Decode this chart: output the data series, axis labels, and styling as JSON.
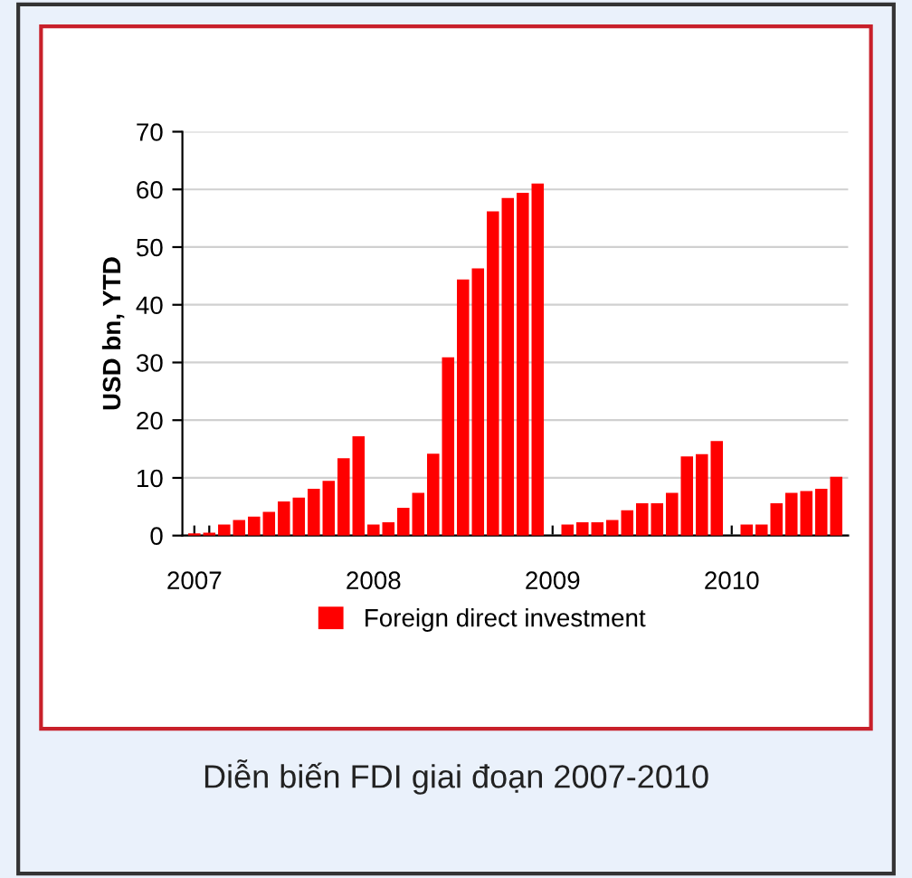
{
  "chart_data": {
    "type": "bar",
    "annotations": [
      "Diễn biến FDI giai đoạn 2007-2010"
    ],
    "ylabel": "USD bn, YTD",
    "categories": [
      "2007",
      null,
      null,
      null,
      null,
      null,
      null,
      null,
      null,
      null,
      null,
      null,
      "2008",
      null,
      null,
      null,
      null,
      null,
      null,
      null,
      null,
      null,
      null,
      null,
      "2009",
      null,
      null,
      null,
      null,
      null,
      null,
      null,
      null,
      null,
      null,
      null,
      "2010",
      null,
      null,
      null,
      null,
      null,
      null,
      null
    ],
    "series": [
      {
        "name": "Foreign direct investment",
        "color": "#ff0000",
        "values": [
          0.4,
          0.5,
          1.9,
          2.7,
          3.3,
          4.1,
          5.9,
          6.6,
          8.1,
          9.5,
          13.4,
          17.2,
          1.9,
          2.3,
          4.8,
          7.4,
          14.2,
          30.9,
          44.4,
          46.3,
          56.2,
          58.5,
          59.4,
          61.0,
          null,
          1.9,
          2.3,
          2.3,
          2.7,
          4.4,
          5.6,
          5.6,
          7.4,
          13.7,
          14.1,
          16.4,
          null,
          1.9,
          1.9,
          5.6,
          7.4,
          7.7,
          8.1,
          10.2
        ]
      }
    ],
    "ylim": [
      0,
      70
    ],
    "yticks": [
      0,
      10,
      20,
      30,
      40,
      50,
      60,
      70
    ],
    "grid": "y",
    "legend": "bottom"
  }
}
